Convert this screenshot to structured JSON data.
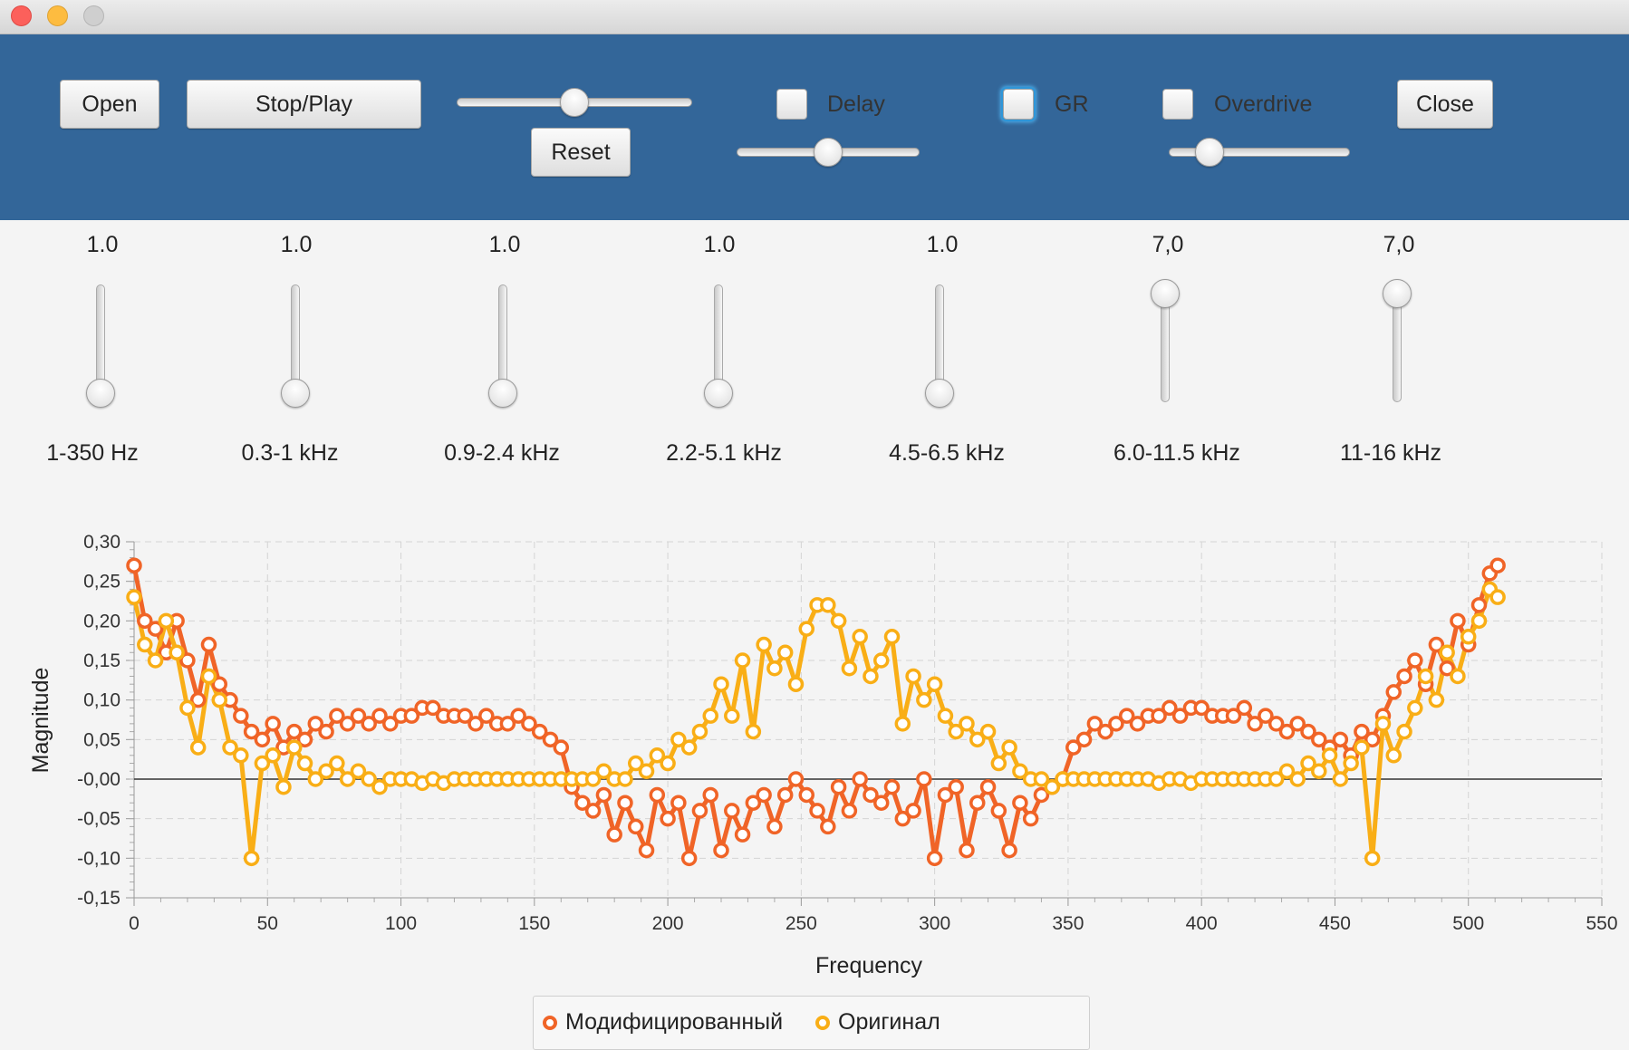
{
  "window": {
    "close_color": "#fc605b",
    "minimize_color": "#fdbc40",
    "zoom_color": "#cfcfcf"
  },
  "toolbar": {
    "background": "#336699",
    "open_label": "Open",
    "stop_play_label": "Stop/Play",
    "reset_label": "Reset",
    "close_label": "Close",
    "volume_level": 0.5,
    "delay_label": "Delay",
    "delay_checked": false,
    "delay_level": 0.5,
    "gr_label": "GR",
    "gr_checked": false,
    "overdrive_label": "Overdrive",
    "overdrive_checked": false,
    "overdrive_level": 0.17
  },
  "equalizer": [
    {
      "value_text": "1.0",
      "label": "1-350 Hz",
      "level": 0.0
    },
    {
      "value_text": "1.0",
      "label": "0.3-1 kHz",
      "level": 0.0
    },
    {
      "value_text": "1.0",
      "label": "0.9-2.4 kHz",
      "level": 0.0
    },
    {
      "value_text": "1.0",
      "label": "2.2-5.1 kHz",
      "level": 0.0
    },
    {
      "value_text": "1.0",
      "label": "4.5-6.5 kHz",
      "level": 0.0
    },
    {
      "value_text": "7,0",
      "label": "6.0-11.5 kHz",
      "level": 1.0
    },
    {
      "value_text": "7,0",
      "label": "11-16 kHz",
      "level": 1.0
    }
  ],
  "chart_data": {
    "type": "line",
    "xlabel": "Frequency",
    "ylabel": "Magnitude",
    "xlim": [
      0,
      550
    ],
    "ylim": [
      -0.15,
      0.3
    ],
    "x_ticks": [
      0,
      50,
      100,
      150,
      200,
      250,
      300,
      350,
      400,
      450,
      500,
      550
    ],
    "x_tick_labels": [
      "0",
      "50",
      "100",
      "150",
      "200",
      "250",
      "300",
      "350",
      "400",
      "450",
      "500",
      "550"
    ],
    "y_ticks": [
      -0.15,
      -0.1,
      -0.05,
      0.0,
      0.05,
      0.1,
      0.15,
      0.2,
      0.25,
      0.3
    ],
    "y_tick_labels": [
      "-0,15",
      "-0,10",
      "-0,05",
      "-0,00",
      "0,05",
      "0,10",
      "0,15",
      "0,20",
      "0,25",
      "0,30"
    ],
    "grid": true,
    "legend_position": "bottom",
    "series": [
      {
        "name": "Модифицированный",
        "color": "#f06427",
        "x": [
          0,
          4,
          8,
          12,
          16,
          20,
          24,
          28,
          32,
          36,
          40,
          44,
          48,
          52,
          56,
          60,
          64,
          68,
          72,
          76,
          80,
          84,
          88,
          92,
          96,
          100,
          104,
          108,
          112,
          116,
          120,
          124,
          128,
          132,
          136,
          140,
          144,
          148,
          152,
          156,
          160,
          164,
          168,
          172,
          176,
          180,
          184,
          188,
          192,
          196,
          200,
          204,
          208,
          212,
          216,
          220,
          224,
          228,
          232,
          236,
          240,
          244,
          248,
          252,
          256,
          260,
          264,
          268,
          272,
          276,
          280,
          284,
          288,
          292,
          296,
          300,
          304,
          308,
          312,
          316,
          320,
          324,
          328,
          332,
          336,
          340,
          344,
          348,
          352,
          356,
          360,
          364,
          368,
          372,
          376,
          380,
          384,
          388,
          392,
          396,
          400,
          404,
          408,
          412,
          416,
          420,
          424,
          428,
          432,
          436,
          440,
          444,
          448,
          452,
          456,
          460,
          464,
          468,
          472,
          476,
          480,
          484,
          488,
          492,
          496,
          500,
          504,
          508,
          511
        ],
        "y": [
          0.27,
          0.2,
          0.19,
          0.16,
          0.2,
          0.15,
          0.1,
          0.17,
          0.12,
          0.1,
          0.08,
          0.06,
          0.05,
          0.07,
          0.04,
          0.06,
          0.05,
          0.07,
          0.06,
          0.08,
          0.07,
          0.08,
          0.07,
          0.08,
          0.07,
          0.08,
          0.08,
          0.09,
          0.09,
          0.08,
          0.08,
          0.08,
          0.07,
          0.08,
          0.07,
          0.07,
          0.08,
          0.07,
          0.06,
          0.05,
          0.04,
          -0.01,
          -0.03,
          -0.04,
          -0.02,
          -0.07,
          -0.03,
          -0.06,
          -0.09,
          -0.02,
          -0.05,
          -0.03,
          -0.1,
          -0.04,
          -0.02,
          -0.09,
          -0.04,
          -0.07,
          -0.03,
          -0.02,
          -0.06,
          -0.02,
          0.0,
          -0.02,
          -0.04,
          -0.06,
          -0.01,
          -0.04,
          0.0,
          -0.02,
          -0.03,
          -0.01,
          -0.05,
          -0.04,
          0.0,
          -0.1,
          -0.02,
          -0.01,
          -0.09,
          -0.03,
          -0.01,
          -0.04,
          -0.09,
          -0.03,
          -0.05,
          -0.02,
          -0.01,
          0.0,
          0.04,
          0.05,
          0.07,
          0.06,
          0.07,
          0.08,
          0.07,
          0.08,
          0.08,
          0.09,
          0.08,
          0.09,
          0.09,
          0.08,
          0.08,
          0.08,
          0.09,
          0.07,
          0.08,
          0.07,
          0.06,
          0.07,
          0.06,
          0.05,
          0.04,
          0.05,
          0.03,
          0.06,
          0.05,
          0.08,
          0.11,
          0.13,
          0.15,
          0.12,
          0.17,
          0.14,
          0.2,
          0.17,
          0.22,
          0.26,
          0.27
        ]
      },
      {
        "name": "Оригинал",
        "color": "#f9ae16",
        "x": [
          0,
          4,
          8,
          12,
          16,
          20,
          24,
          28,
          32,
          36,
          40,
          44,
          48,
          52,
          56,
          60,
          64,
          68,
          72,
          76,
          80,
          84,
          88,
          92,
          96,
          100,
          104,
          108,
          112,
          116,
          120,
          124,
          128,
          132,
          136,
          140,
          144,
          148,
          152,
          156,
          160,
          164,
          168,
          172,
          176,
          180,
          184,
          188,
          192,
          196,
          200,
          204,
          208,
          212,
          216,
          220,
          224,
          228,
          232,
          236,
          240,
          244,
          248,
          252,
          256,
          260,
          264,
          268,
          272,
          276,
          280,
          284,
          288,
          292,
          296,
          300,
          304,
          308,
          312,
          316,
          320,
          324,
          328,
          332,
          336,
          340,
          344,
          348,
          352,
          356,
          360,
          364,
          368,
          372,
          376,
          380,
          384,
          388,
          392,
          396,
          400,
          404,
          408,
          412,
          416,
          420,
          424,
          428,
          432,
          436,
          440,
          444,
          448,
          452,
          456,
          460,
          464,
          468,
          472,
          476,
          480,
          484,
          488,
          492,
          496,
          500,
          504,
          508,
          511
        ],
        "y": [
          0.23,
          0.17,
          0.15,
          0.2,
          0.16,
          0.09,
          0.04,
          0.13,
          0.1,
          0.04,
          0.03,
          -0.1,
          0.02,
          0.03,
          -0.01,
          0.04,
          0.02,
          0.0,
          0.01,
          0.02,
          0.0,
          0.01,
          0.0,
          -0.01,
          0.0,
          0.0,
          0.0,
          -0.005,
          0.0,
          -0.005,
          0.0,
          0.0,
          0.0,
          0.0,
          0.0,
          0.0,
          0.0,
          0.0,
          0.0,
          0.0,
          0.0,
          0.0,
          0.0,
          0.0,
          0.01,
          0.0,
          0.0,
          0.02,
          0.01,
          0.03,
          0.02,
          0.05,
          0.04,
          0.06,
          0.08,
          0.12,
          0.08,
          0.15,
          0.06,
          0.17,
          0.14,
          0.16,
          0.12,
          0.19,
          0.22,
          0.22,
          0.2,
          0.14,
          0.18,
          0.13,
          0.15,
          0.18,
          0.07,
          0.13,
          0.1,
          0.12,
          0.08,
          0.06,
          0.07,
          0.05,
          0.06,
          0.02,
          0.04,
          0.01,
          0.0,
          0.0,
          -0.01,
          0.0,
          0.0,
          0.0,
          0.0,
          0.0,
          0.0,
          0.0,
          0.0,
          0.0,
          -0.005,
          0.0,
          0.0,
          -0.005,
          0.0,
          0.0,
          0.0,
          0.0,
          0.0,
          0.0,
          0.0,
          0.0,
          0.01,
          0.0,
          0.02,
          0.01,
          0.03,
          0.0,
          0.02,
          0.04,
          -0.1,
          0.07,
          0.03,
          0.06,
          0.09,
          0.13,
          0.1,
          0.16,
          0.13,
          0.18,
          0.2,
          0.24,
          0.23
        ]
      }
    ]
  }
}
